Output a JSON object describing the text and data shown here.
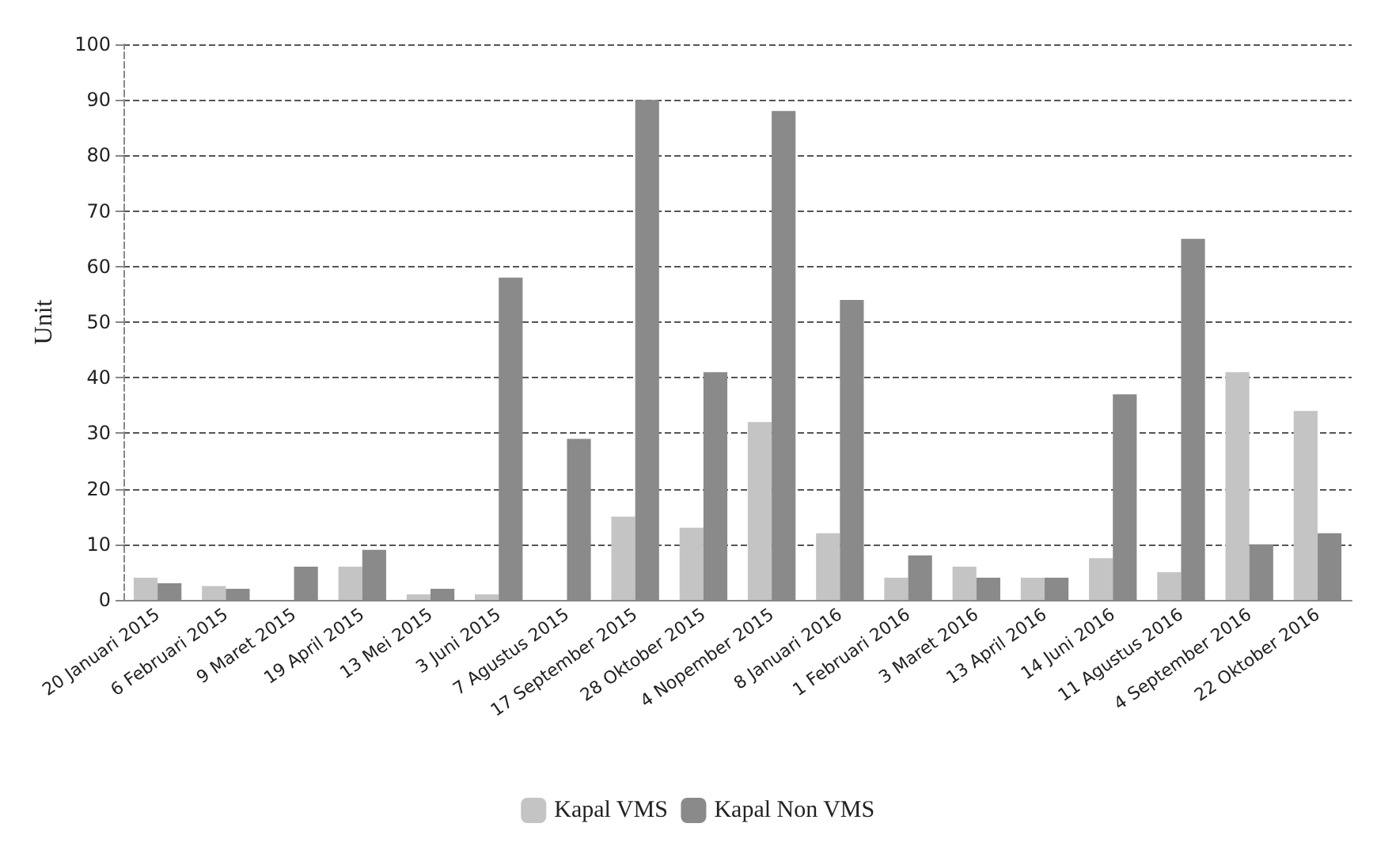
{
  "chart_data": {
    "type": "bar",
    "ylabel": "Unit",
    "categories": [
      "20 Januari 2015",
      "6 Februari 2015",
      "9 Maret 2015",
      "19 April 2015",
      "13 Mei 2015",
      "3 Juni 2015",
      "7 Agustus 2015",
      "17 September 2015",
      "28 Oktober 2015",
      "4 Nopember 2015",
      "8 Januari 2016",
      "1 Februari 2016",
      "3 Maret 2016",
      "13 April 2016",
      "14 Juni 2016",
      "11 Agustus 2016",
      "4 September 2016",
      "22 Oktober 2016"
    ],
    "series": [
      {
        "name": "Kapal VMS",
        "color": "#c4c4c4",
        "values": [
          4,
          2.5,
          0,
          6,
          1,
          1,
          0,
          15,
          13,
          32,
          12,
          4,
          6,
          4,
          7.5,
          5,
          41,
          34
        ]
      },
      {
        "name": "Kapal Non VMS",
        "color": "#8a8a8a",
        "values": [
          3,
          2,
          6,
          9,
          2,
          58,
          29,
          90,
          41,
          88,
          54,
          8,
          4,
          4,
          37,
          65,
          10,
          12
        ]
      }
    ],
    "ylim": [
      0,
      100
    ],
    "yticks": [
      0,
      10,
      20,
      30,
      40,
      50,
      60,
      70,
      80,
      90,
      100
    ],
    "grid": "y",
    "legend": "bottom"
  }
}
